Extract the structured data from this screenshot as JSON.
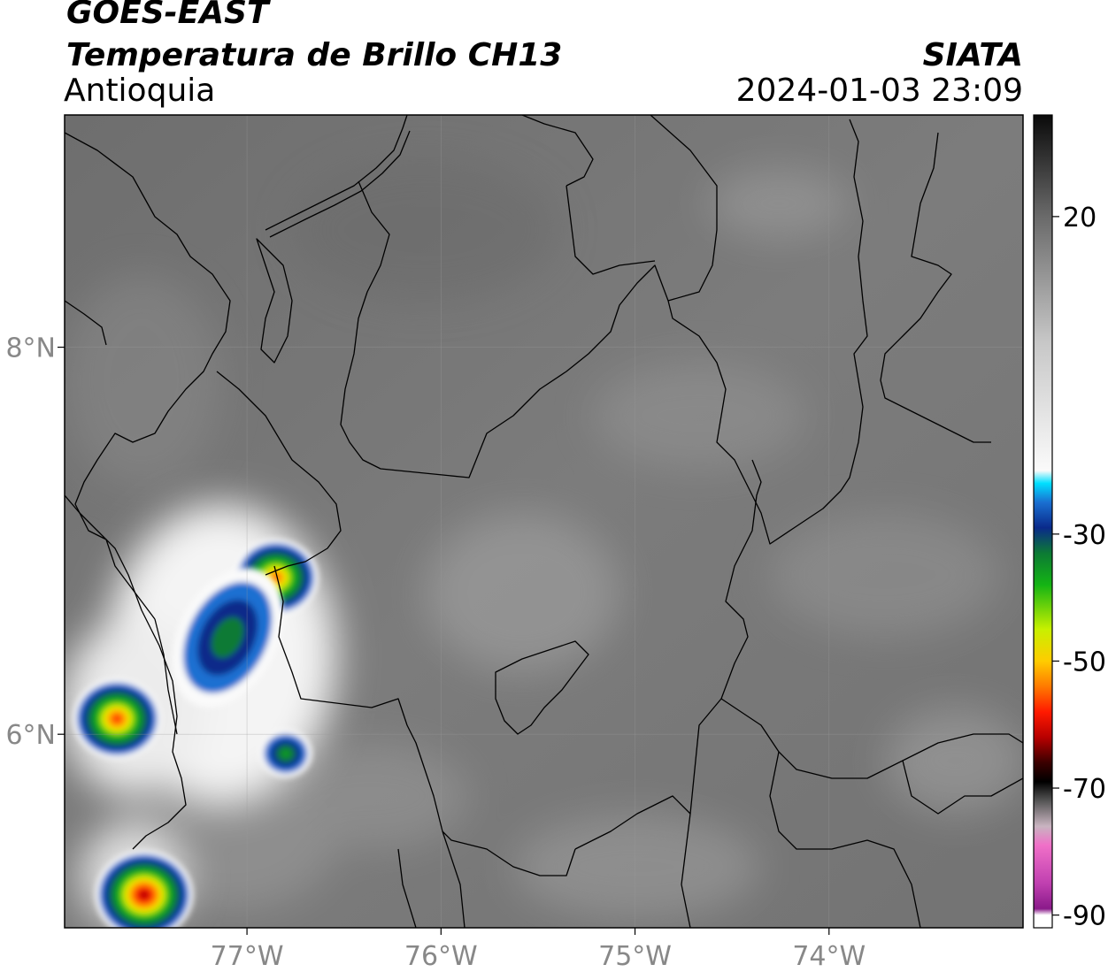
{
  "header": {
    "title_line1": "GOES-EAST",
    "title_line2": "Temperatura de Brillo CH13",
    "subtitle": "Antioquia",
    "organization": "SIATA",
    "datetime": "2024-01-03 23:09"
  },
  "map": {
    "lon_range": [
      -77.94,
      -73.0
    ],
    "lat_range": [
      5.0,
      9.2
    ],
    "lon_ticks": [
      {
        "value": -77,
        "label": "77°W"
      },
      {
        "value": -76,
        "label": "76°W"
      },
      {
        "value": -75,
        "label": "75°W"
      },
      {
        "value": -74,
        "label": "74°W"
      }
    ],
    "lat_ticks": [
      {
        "value": 8,
        "label": "8°N"
      },
      {
        "value": 6,
        "label": "6°N"
      }
    ],
    "gridlines": true
  },
  "colorbar": {
    "range": [
      -92,
      36
    ],
    "ticks": [
      {
        "value": 20,
        "label": "20"
      },
      {
        "value": -30,
        "label": "-30"
      },
      {
        "value": -50,
        "label": "-50"
      },
      {
        "value": -70,
        "label": "-70"
      },
      {
        "value": -90,
        "label": "-90"
      }
    ],
    "stops": [
      {
        "value": 36,
        "color": "#0a0a0a"
      },
      {
        "value": 20,
        "color": "#6a6a6a"
      },
      {
        "value": 0,
        "color": "#c8c8c8"
      },
      {
        "value": -20,
        "color": "#fafafa"
      },
      {
        "value": -22,
        "color": "#00e0ff"
      },
      {
        "value": -25,
        "color": "#1a6fd1"
      },
      {
        "value": -29,
        "color": "#0a2a8a"
      },
      {
        "value": -33,
        "color": "#0c7a34"
      },
      {
        "value": -38,
        "color": "#14b414"
      },
      {
        "value": -45,
        "color": "#c8f000"
      },
      {
        "value": -50,
        "color": "#ffcc00"
      },
      {
        "value": -54,
        "color": "#ff7a00"
      },
      {
        "value": -58,
        "color": "#ff1a00"
      },
      {
        "value": -62,
        "color": "#b80000"
      },
      {
        "value": -66,
        "color": "#3a0000"
      },
      {
        "value": -69,
        "color": "#000000"
      },
      {
        "value": -72,
        "color": "#555555"
      },
      {
        "value": -76,
        "color": "#c8b4c0"
      },
      {
        "value": -79,
        "color": "#f070c8"
      },
      {
        "value": -85,
        "color": "#c040b0"
      },
      {
        "value": -89,
        "color": "#8a1a8a"
      },
      {
        "value": -90,
        "color": "#ffffff"
      },
      {
        "value": -92,
        "color": "#ffffff"
      }
    ]
  },
  "storm_cells": [
    {
      "lon": -77.67,
      "lat": 6.08,
      "min_temp": -60
    },
    {
      "lon": -77.53,
      "lat": 5.17,
      "min_temp": -65
    },
    {
      "lon": -76.85,
      "lat": 6.81,
      "min_temp": -58
    },
    {
      "lon": -77.1,
      "lat": 6.5,
      "min_temp": -40
    },
    {
      "lon": -76.8,
      "lat": 5.9,
      "min_temp": -42
    }
  ]
}
